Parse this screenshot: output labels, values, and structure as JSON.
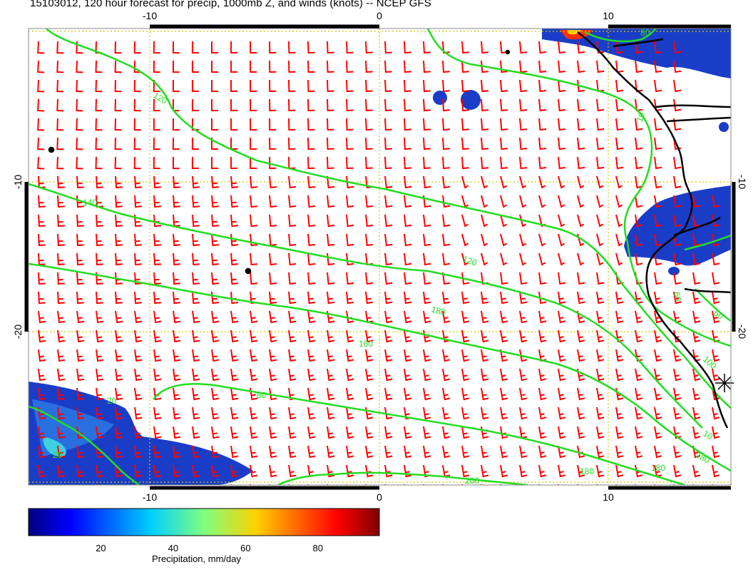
{
  "title": "15103012, 120 hour forecast for precip, 1000mb Z, and winds (knots) -- NCEP GFS",
  "axes": {
    "top_ticks": [
      "-10",
      "0",
      "10"
    ],
    "bottom_ticks": [
      "-10",
      "0",
      "10"
    ],
    "left_ticks": [
      "-10",
      "-20"
    ],
    "right_ticks": [
      "-10",
      "-20"
    ]
  },
  "contour_labels": [
    "120",
    "120",
    "140",
    "160",
    "180",
    "180",
    "180",
    "180",
    "200",
    "100",
    "80",
    "60",
    "60",
    "80",
    "20",
    "10",
    "10",
    "20"
  ],
  "colorbar": {
    "title": "Precipitation, mm/day",
    "ticks": [
      "20",
      "40",
      "60",
      "80"
    ],
    "range": [
      0,
      97
    ]
  },
  "colors": {
    "wind_barbs": "#ff0000",
    "contours": "#22dd22",
    "gridlines": "#cccc00",
    "coastline": "#000000"
  },
  "marker": "asterisk-marker"
}
